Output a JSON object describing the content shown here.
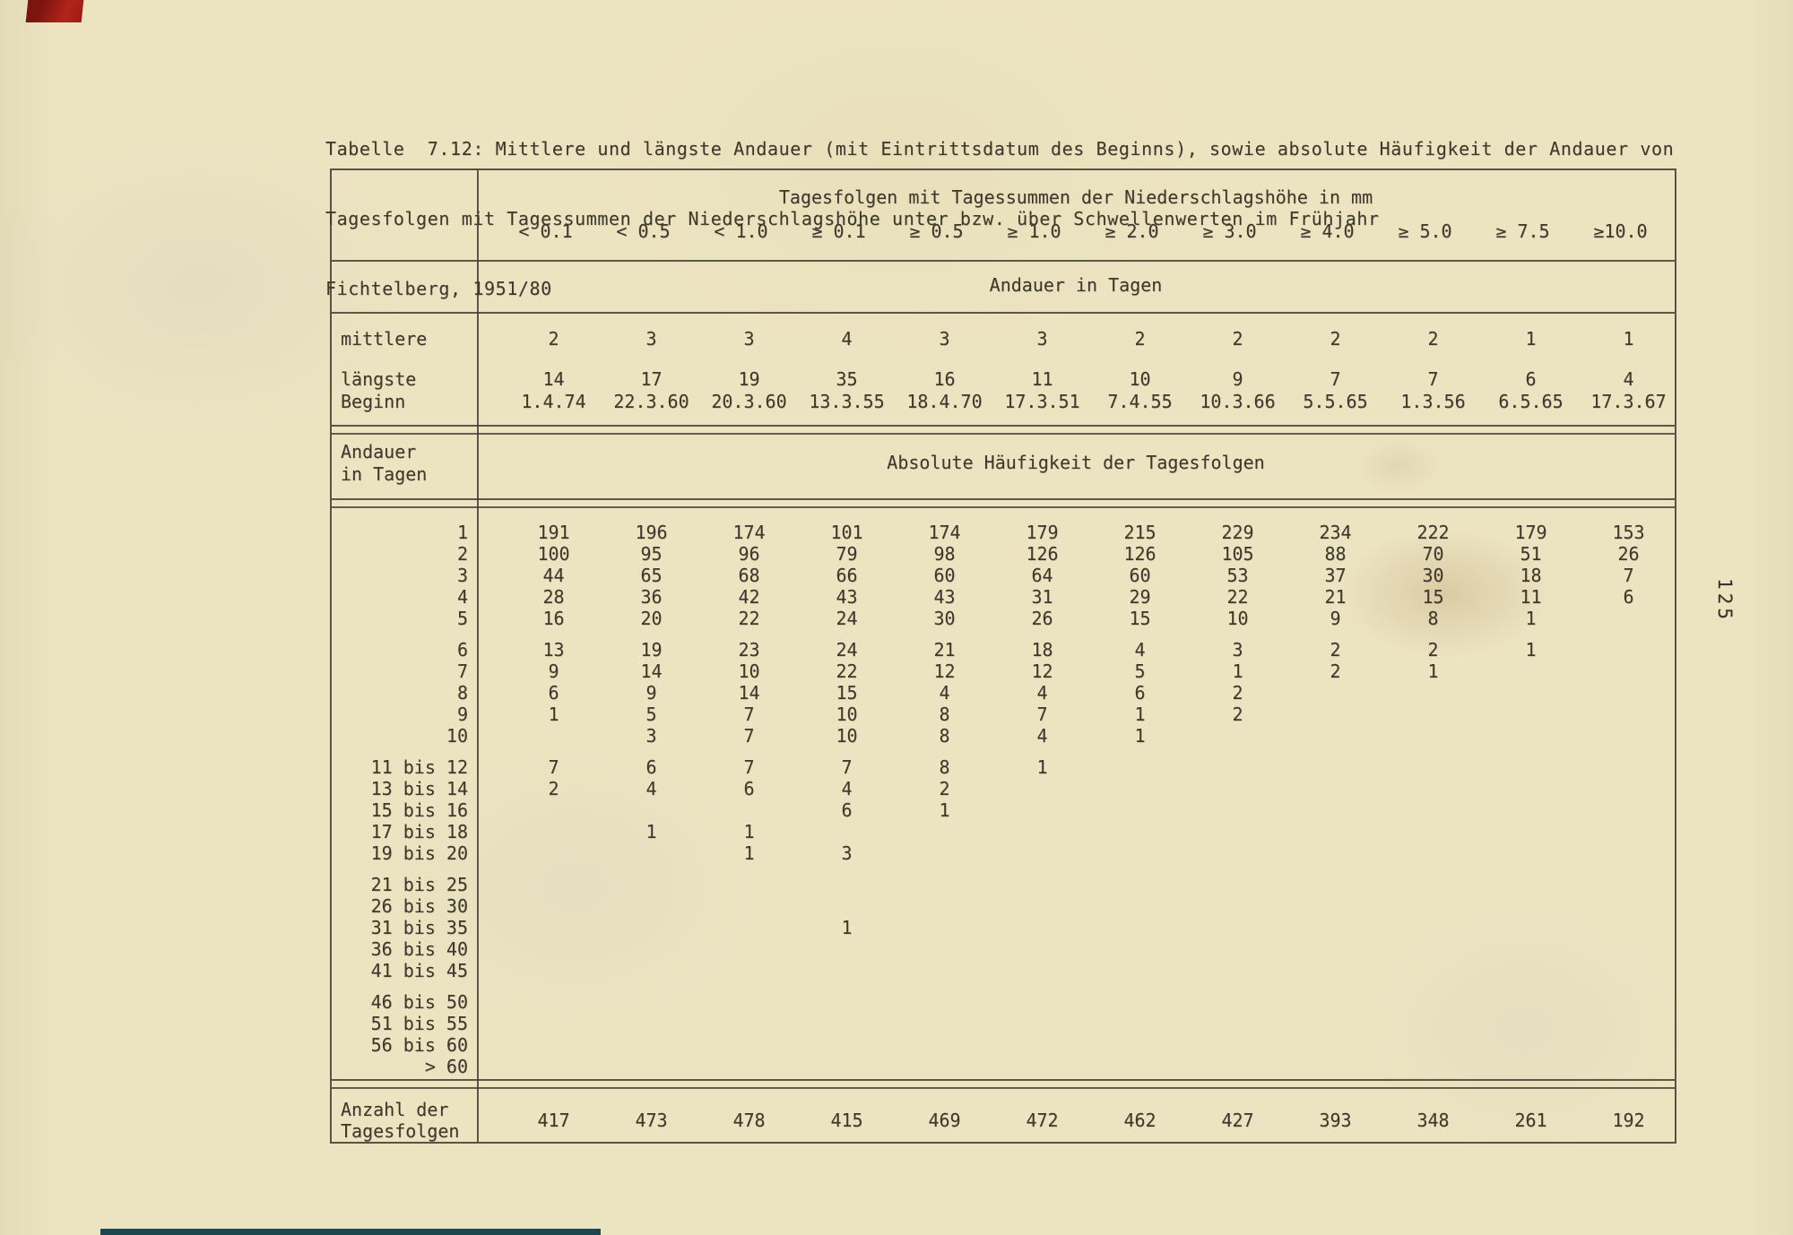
{
  "page": {
    "number_rotated": "125"
  },
  "title": {
    "line1": "Tabelle  7.12: Mittlere und längste Andauer (mit Eintrittsdatum des Beginns), sowie absolute Häufigkeit der Andauer von",
    "line2": "Tagesfolgen mit Tagessummen der Niederschlagshöhe unter bzw. über Schwellenwerten im Frühjahr",
    "line3": "Fichtelberg, 1951/80"
  },
  "table": {
    "header_top": "Tagesfolgen mit Tagessummen der Niederschlagshöhe in mm",
    "columns": [
      "< 0.1",
      "< 0.5",
      "< 1.0",
      "≥ 0.1",
      "≥ 0.5",
      "≥ 1.0",
      "≥ 2.0",
      "≥ 3.0",
      "≥ 4.0",
      "≥ 5.0",
      "≥ 7.5",
      "≥10.0"
    ],
    "subheader": "Andauer in Tagen",
    "mittlere": {
      "label": "mittlere",
      "values": [
        "2",
        "3",
        "3",
        "4",
        "3",
        "3",
        "2",
        "2",
        "2",
        "2",
        "1",
        "1"
      ]
    },
    "laengste": {
      "label": "längste",
      "values": [
        "14",
        "17",
        "19",
        "35",
        "16",
        "11",
        "10",
        "9",
        "7",
        "7",
        "6",
        "4"
      ]
    },
    "beginn": {
      "label": "Beginn",
      "values": [
        "1.4.74",
        "22.3.60",
        "20.3.60",
        "13.3.55",
        "18.4.70",
        "17.3.51",
        "7.4.55",
        "10.3.66",
        "5.5.65",
        "1.3.56",
        "6.5.65",
        "17.3.67"
      ]
    },
    "section": {
      "row_label_line1": "Andauer",
      "row_label_line2": "in Tagen",
      "header": "Absolute Häufigkeit der Tagesfolgen"
    },
    "body_groups": [
      {
        "rows": [
          {
            "label": "1",
            "cells": [
              "191",
              "196",
              "174",
              "101",
              "174",
              "179",
              "215",
              "229",
              "234",
              "222",
              "179",
              "153"
            ]
          },
          {
            "label": "2",
            "cells": [
              "100",
              "95",
              "96",
              "79",
              "98",
              "126",
              "126",
              "105",
              "88",
              "70",
              "51",
              "26"
            ]
          },
          {
            "label": "3",
            "cells": [
              "44",
              "65",
              "68",
              "66",
              "60",
              "64",
              "60",
              "53",
              "37",
              "30",
              "18",
              "7"
            ]
          },
          {
            "label": "4",
            "cells": [
              "28",
              "36",
              "42",
              "43",
              "43",
              "31",
              "29",
              "22",
              "21",
              "15",
              "11",
              "6"
            ]
          },
          {
            "label": "5",
            "cells": [
              "16",
              "20",
              "22",
              "24",
              "30",
              "26",
              "15",
              "10",
              "9",
              "8",
              "1",
              ""
            ]
          }
        ]
      },
      {
        "rows": [
          {
            "label": "6",
            "cells": [
              "13",
              "19",
              "23",
              "24",
              "21",
              "18",
              "4",
              "3",
              "2",
              "2",
              "1",
              ""
            ]
          },
          {
            "label": "7",
            "cells": [
              "9",
              "14",
              "10",
              "22",
              "12",
              "12",
              "5",
              "1",
              "2",
              "1",
              "",
              ""
            ]
          },
          {
            "label": "8",
            "cells": [
              "6",
              "9",
              "14",
              "15",
              "4",
              "4",
              "6",
              "2",
              "",
              "",
              "",
              ""
            ]
          },
          {
            "label": "9",
            "cells": [
              "1",
              "5",
              "7",
              "10",
              "8",
              "7",
              "1",
              "2",
              "",
              "",
              "",
              ""
            ]
          },
          {
            "label": "10",
            "cells": [
              "",
              "3",
              "7",
              "10",
              "8",
              "4",
              "1",
              "",
              "",
              "",
              "",
              ""
            ]
          }
        ]
      },
      {
        "rows": [
          {
            "label": "11 bis 12",
            "cells": [
              "7",
              "6",
              "7",
              "7",
              "8",
              "1",
              "",
              "",
              "",
              "",
              "",
              ""
            ]
          },
          {
            "label": "13 bis 14",
            "cells": [
              "2",
              "4",
              "6",
              "4",
              "2",
              "",
              "",
              "",
              "",
              "",
              "",
              ""
            ]
          },
          {
            "label": "15 bis 16",
            "cells": [
              "",
              "",
              "",
              "6",
              "1",
              "",
              "",
              "",
              "",
              "",
              "",
              ""
            ]
          },
          {
            "label": "17 bis 18",
            "cells": [
              "",
              "1",
              "1",
              "",
              "",
              "",
              "",
              "",
              "",
              "",
              "",
              ""
            ]
          },
          {
            "label": "19 bis 20",
            "cells": [
              "",
              "",
              "1",
              "3",
              "",
              "",
              "",
              "",
              "",
              "",
              "",
              ""
            ]
          }
        ]
      },
      {
        "rows": [
          {
            "label": "21 bis 25",
            "cells": [
              "",
              "",
              "",
              "",
              "",
              "",
              "",
              "",
              "",
              "",
              "",
              ""
            ]
          },
          {
            "label": "26 bis 30",
            "cells": [
              "",
              "",
              "",
              "",
              "",
              "",
              "",
              "",
              "",
              "",
              "",
              ""
            ]
          },
          {
            "label": "31 bis 35",
            "cells": [
              "",
              "",
              "",
              "1",
              "",
              "",
              "",
              "",
              "",
              "",
              "",
              ""
            ]
          },
          {
            "label": "36 bis 40",
            "cells": [
              "",
              "",
              "",
              "",
              "",
              "",
              "",
              "",
              "",
              "",
              "",
              ""
            ]
          },
          {
            "label": "41 bis 45",
            "cells": [
              "",
              "",
              "",
              "",
              "",
              "",
              "",
              "",
              "",
              "",
              "",
              ""
            ]
          }
        ]
      },
      {
        "rows": [
          {
            "label": "46 bis 50",
            "cells": [
              "",
              "",
              "",
              "",
              "",
              "",
              "",
              "",
              "",
              "",
              "",
              ""
            ]
          },
          {
            "label": "51 bis 55",
            "cells": [
              "",
              "",
              "",
              "",
              "",
              "",
              "",
              "",
              "",
              "",
              "",
              ""
            ]
          },
          {
            "label": "56 bis 60",
            "cells": [
              "",
              "",
              "",
              "",
              "",
              "",
              "",
              "",
              "",
              "",
              "",
              ""
            ]
          },
          {
            "label": "> 60",
            "cells": [
              "",
              "",
              "",
              "",
              "",
              "",
              "",
              "",
              "",
              "",
              "",
              ""
            ]
          }
        ]
      }
    ],
    "footer": {
      "label_line1": "Anzahl der",
      "label_line2": "Tagesfolgen",
      "values": [
        "417",
        "473",
        "478",
        "415",
        "469",
        "472",
        "462",
        "427",
        "393",
        "348",
        "261",
        "192"
      ]
    }
  }
}
